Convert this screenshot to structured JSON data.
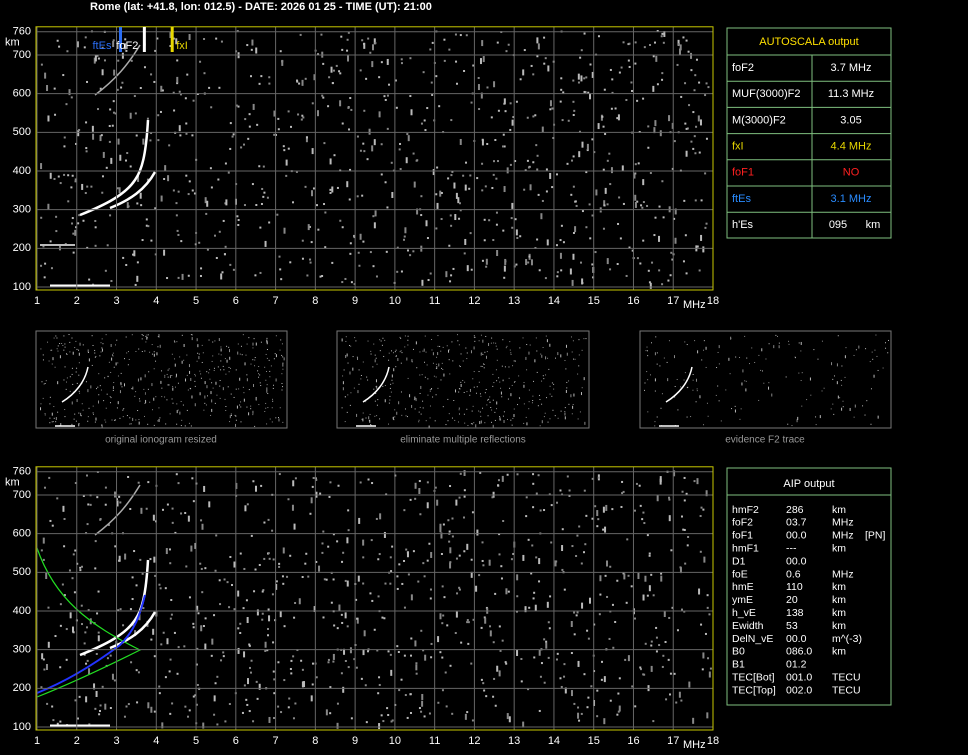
{
  "header": "Rome (lat: +41.8, lon: 012.5) - DATE: 2026 01 25 - TIME (UT): 21:00",
  "y_unit": "km",
  "x_unit": "MHz",
  "yticks": [
    100,
    200,
    300,
    400,
    500,
    600,
    700,
    760
  ],
  "xticks": [
    1,
    2,
    3,
    4,
    5,
    6,
    7,
    8,
    9,
    10,
    11,
    12,
    13,
    14,
    15,
    16,
    17,
    18
  ],
  "markers": [
    {
      "label": "ftEs",
      "mhz": 3.1,
      "color": "#2a6df4"
    },
    {
      "label": "foF2",
      "mhz": 3.7,
      "color": "#ffffff"
    },
    {
      "label": "fxI",
      "mhz": 4.4,
      "color": "#e8d800"
    }
  ],
  "autoscala": {
    "title": "AUTOSCALA output",
    "rows": [
      {
        "label": "foF2",
        "value": "3.7 MHz",
        "color": "#ffffff"
      },
      {
        "label": "MUF(3000)F2",
        "value": "11.3 MHz",
        "color": "#ffffff"
      },
      {
        "label": "M(3000)F2",
        "value": "3.05",
        "color": "#ffffff"
      },
      {
        "label": "fxI",
        "value": "4.4 MHz",
        "color": "#e8d800"
      },
      {
        "label": "foF1",
        "value": "NO",
        "color": "#ff2020"
      },
      {
        "label": "ftEs",
        "value": "3.1 MHz",
        "color": "#2a8cff"
      },
      {
        "label": "h'Es",
        "value": "095",
        "unit": "km",
        "color": "#ffffff"
      }
    ]
  },
  "thumbnails": [
    "original ionogram resized",
    "eliminate multiple reflections",
    "evidence F2 trace"
  ],
  "aip": {
    "title": "AIP output",
    "rows": [
      [
        "hmF2",
        "286",
        "km"
      ],
      [
        "foF2",
        "03.7",
        "MHz"
      ],
      [
        "foF1",
        "00.0",
        "MHz",
        "[PN]"
      ],
      [
        "hmF1",
        "---",
        "km"
      ],
      [
        "D1",
        "00.0"
      ],
      [
        "foE",
        "0.6",
        "MHz"
      ],
      [
        "hmE",
        "110",
        "km"
      ],
      [
        "ymE",
        "20",
        "km"
      ],
      [
        "h_vE",
        "138",
        "km"
      ],
      [
        "Ewidth",
        "53",
        "km"
      ],
      [
        "DelN_vE",
        "00.0",
        "m^(-3)"
      ],
      [
        "B0",
        "086.0",
        "km"
      ],
      [
        "B1",
        "01.2"
      ],
      [
        "TEC[Bot]",
        "001.0",
        "TECU"
      ],
      [
        "TEC[Top]",
        "002.0",
        "TECU"
      ]
    ]
  }
}
